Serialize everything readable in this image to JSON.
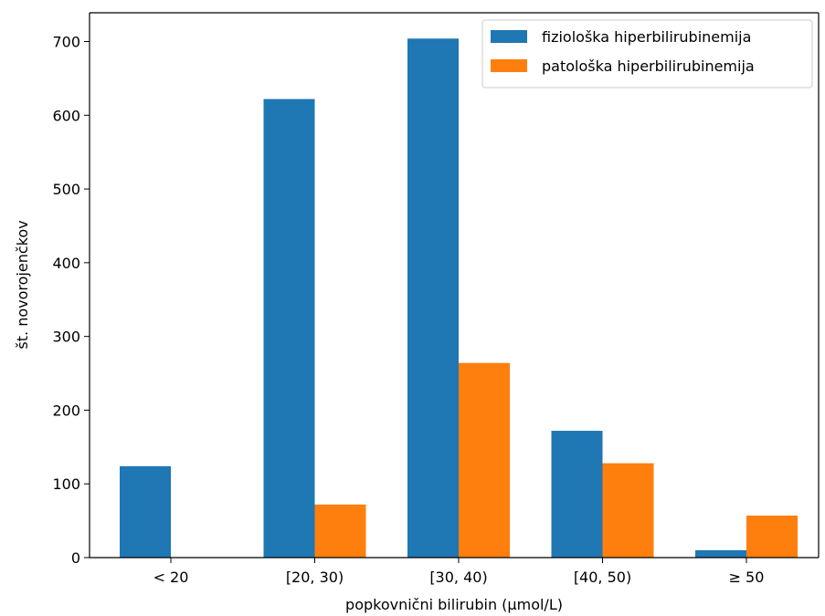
{
  "chart_data": {
    "type": "bar",
    "categories": [
      "< 20",
      "[20, 30)",
      "[30, 40)",
      "[40, 50)",
      "≥ 50"
    ],
    "series": [
      {
        "name": "fiziološka hiperbilirubinemija",
        "color": "#1f77b4",
        "values": [
          124,
          622,
          704,
          172,
          10
        ]
      },
      {
        "name": "patološka hiperbilirubinemija",
        "color": "#ff7f0e",
        "values": [
          0,
          72,
          264,
          128,
          57
        ]
      }
    ],
    "title": "",
    "xlabel": "popkovnični bilirubin (μmol/L)",
    "ylabel": "št. novorojenčkov",
    "ylim": [
      0,
      739
    ],
    "yticks": [
      0,
      100,
      200,
      300,
      400,
      500,
      600,
      700
    ],
    "legend_position": "top-right",
    "grid": false
  }
}
